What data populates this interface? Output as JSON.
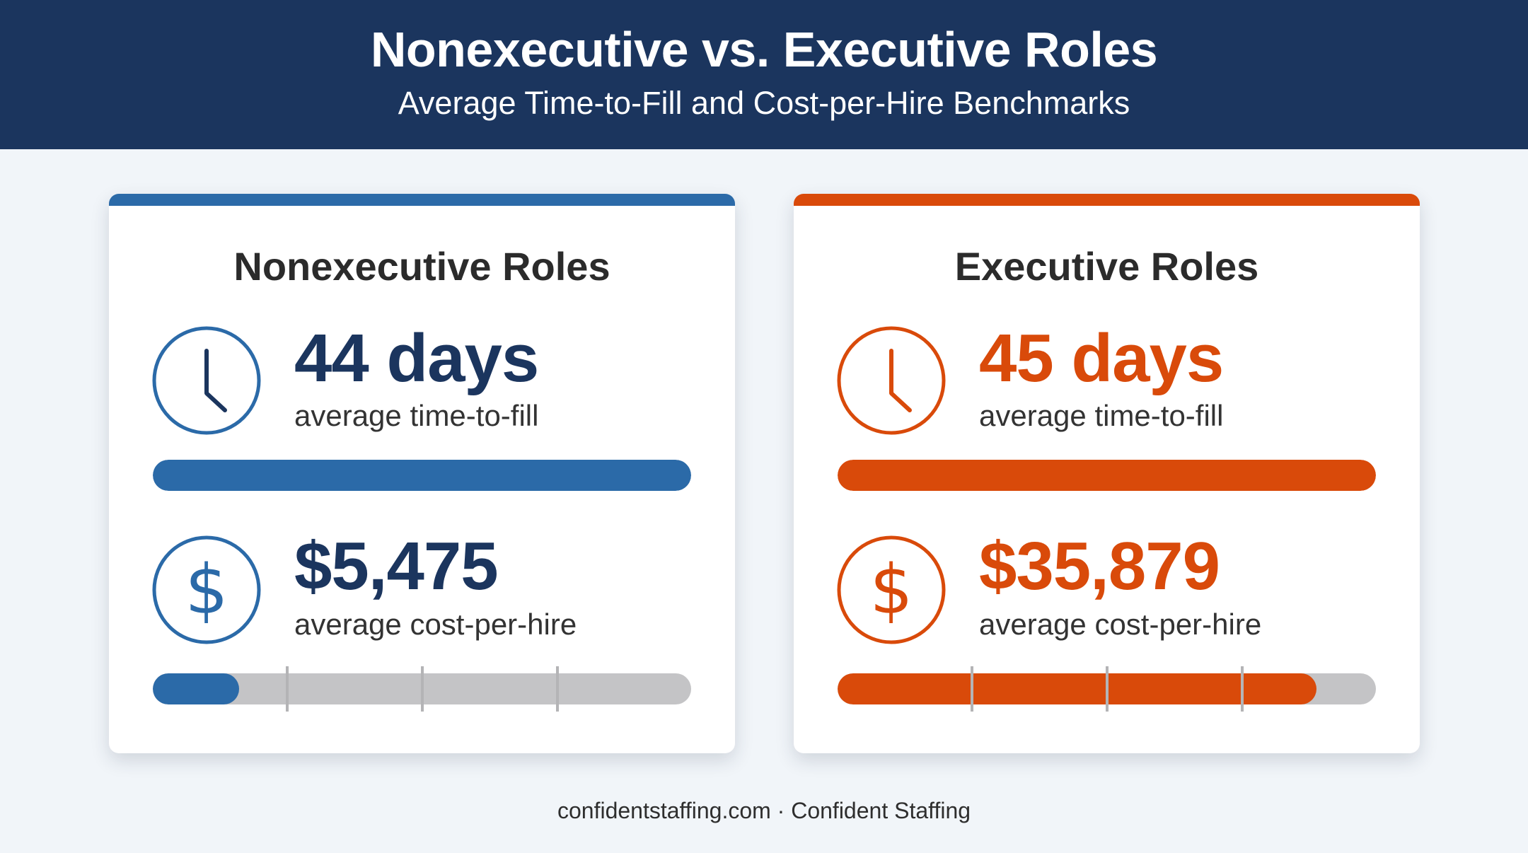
{
  "header": {
    "title": "Nonexecutive vs. Executive Roles",
    "subtitle": "Average Time-to-Fill and Cost-per-Hire Benchmarks"
  },
  "colors": {
    "header_bg": "#1b355e",
    "nonexecutive_accent": "#2b6aa8",
    "nonexecutive_text": "#1b355e",
    "executive_accent": "#d94a0a",
    "bar_track": "#c4c4c6"
  },
  "cards": [
    {
      "title": "Nonexecutive Roles",
      "time_value": "44 days",
      "time_label": "average time-to-fill",
      "cost_value": "$5,475",
      "cost_label": "average cost-per-hire",
      "time_bar_fraction": 1.0,
      "cost_bar_fraction": 0.16,
      "icons": [
        "clock-icon",
        "dollar-icon"
      ]
    },
    {
      "title": "Executive Roles",
      "time_value": "45 days",
      "time_label": "average time-to-fill",
      "cost_value": "$35,879",
      "cost_label": "average cost-per-hire",
      "time_bar_fraction": 1.0,
      "cost_bar_fraction": 0.89,
      "icons": [
        "clock-icon",
        "dollar-icon"
      ]
    }
  ],
  "footer": {
    "text": "confidentstaffing.com · Confident Staffing"
  }
}
